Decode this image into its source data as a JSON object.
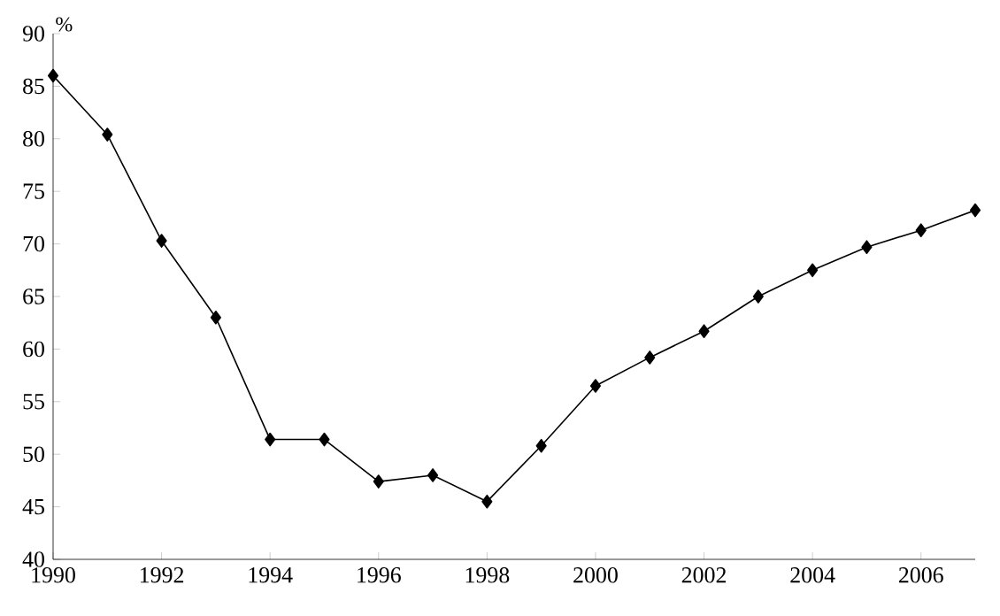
{
  "chart_data": {
    "type": "line",
    "ylabel": "%",
    "x": [
      1990,
      1991,
      1992,
      1993,
      1994,
      1995,
      1996,
      1997,
      1998,
      1999,
      2000,
      2001,
      2002,
      2003,
      2004,
      2005,
      2006,
      2007
    ],
    "values": [
      86.0,
      80.4,
      70.3,
      63.0,
      51.4,
      51.4,
      47.4,
      48.0,
      45.5,
      50.8,
      56.5,
      59.2,
      61.7,
      65.0,
      67.5,
      69.7,
      71.3,
      73.2
    ],
    "color": "#000000",
    "marker": "diamond",
    "line_style": "solid",
    "grid": false,
    "xlim": [
      1990,
      2007
    ],
    "xticks": [
      1990,
      1992,
      1994,
      1996,
      1998,
      2000,
      2002,
      2004,
      2006
    ],
    "ylim": [
      40,
      90
    ],
    "yticks": [
      40,
      45,
      50,
      55,
      60,
      65,
      70,
      75,
      80,
      85,
      90
    ]
  }
}
